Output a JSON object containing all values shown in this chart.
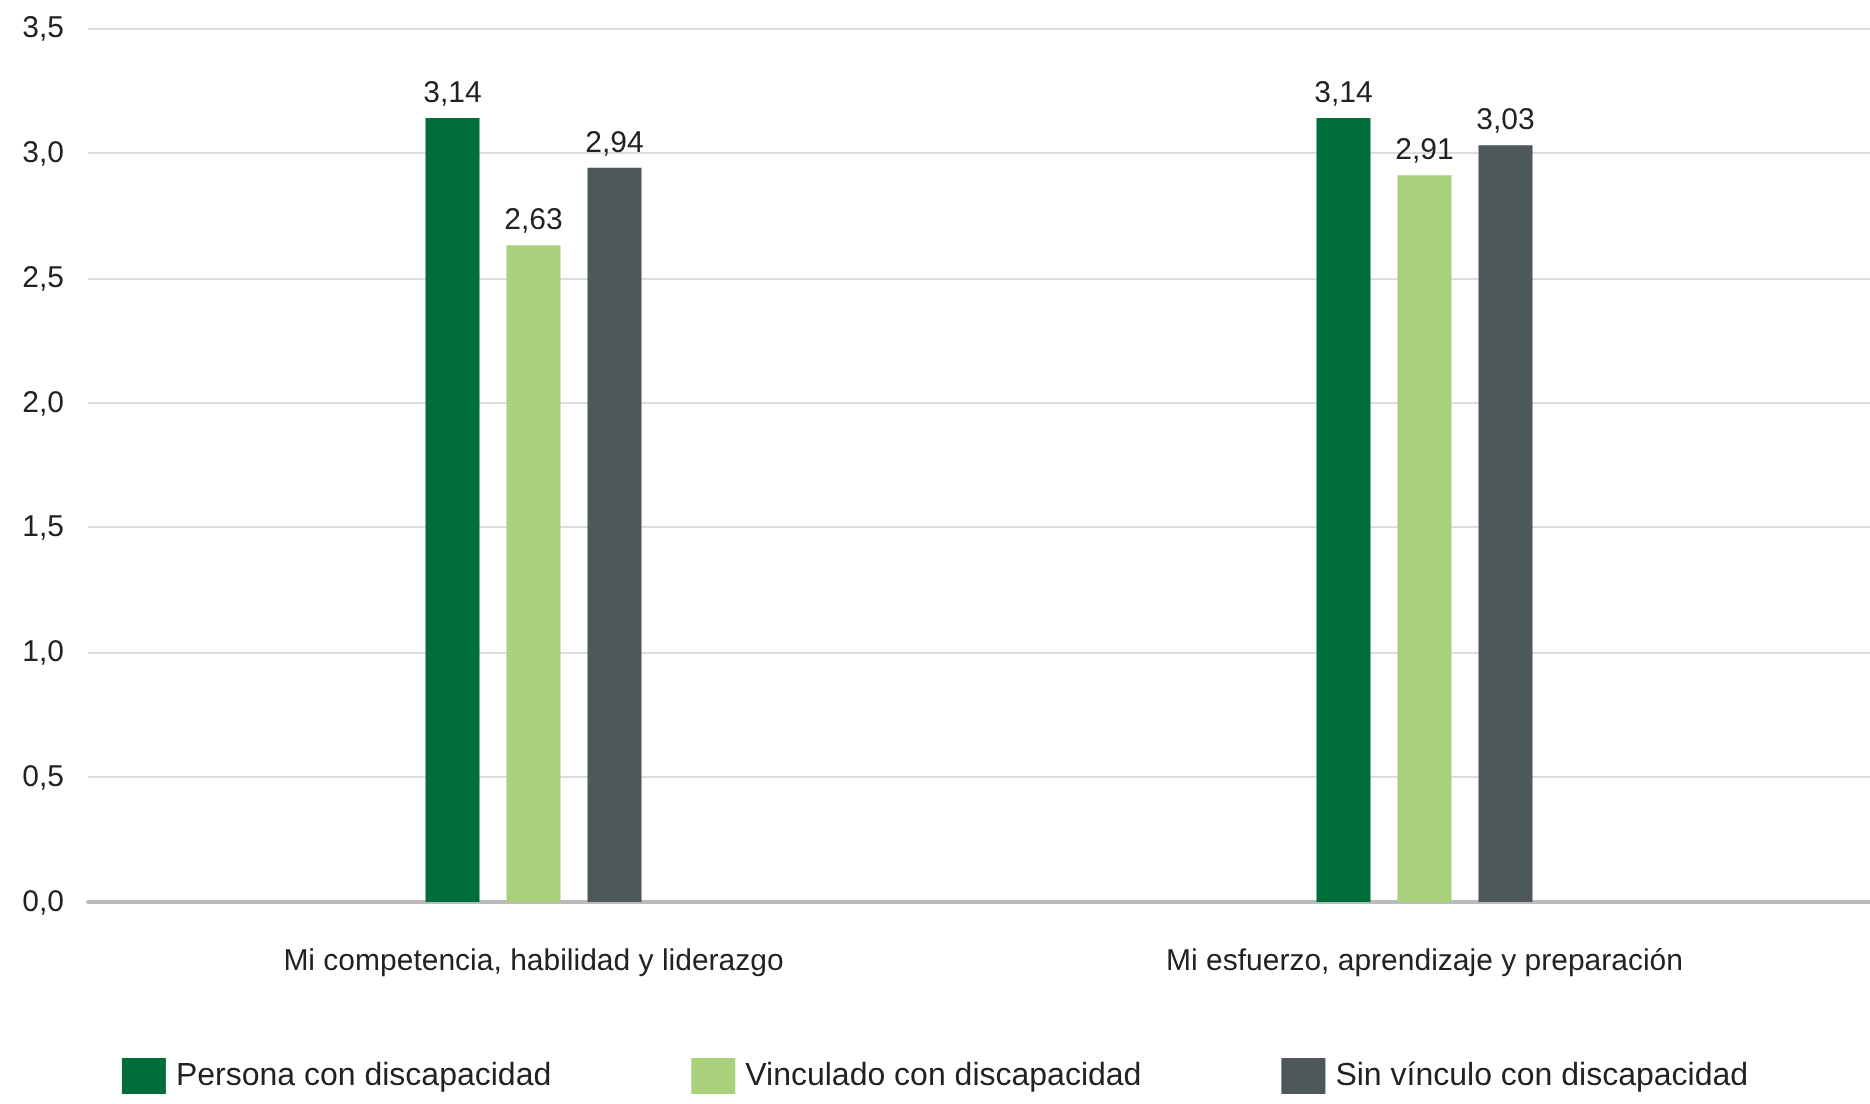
{
  "chart_data": {
    "type": "bar",
    "categories": [
      "Mi competencia, habilidad y liderazgo",
      "Mi esfuerzo, aprendizaje y preparación"
    ],
    "series": [
      {
        "name": "Persona con discapacidad",
        "color": "#006e38",
        "values": [
          3.14,
          3.14
        ],
        "value_labels": [
          "3,14",
          "3,14"
        ]
      },
      {
        "name": "Vinculado con discapacidad",
        "color": "#a9d07a",
        "values": [
          2.63,
          2.91
        ],
        "value_labels": [
          "2,63",
          "2,91"
        ]
      },
      {
        "name": "Sin vínculo con discapacidad",
        "color": "#4e5759",
        "values": [
          2.94,
          3.03
        ],
        "value_labels": [
          "2,94",
          "3,03"
        ]
      }
    ],
    "ylim": [
      0,
      3.5
    ],
    "yticks": [
      {
        "value": 0,
        "label": "0,0"
      },
      {
        "value": 0.5,
        "label": "0,5"
      },
      {
        "value": 1,
        "label": "1,0"
      },
      {
        "value": 1.5,
        "label": "1,5"
      },
      {
        "value": 2,
        "label": "2,0"
      },
      {
        "value": 2.5,
        "label": "2,5"
      },
      {
        "value": 3,
        "label": "3,0"
      },
      {
        "value": 3.5,
        "label": "3,5"
      }
    ],
    "grid": "y",
    "legend": "bottom"
  }
}
